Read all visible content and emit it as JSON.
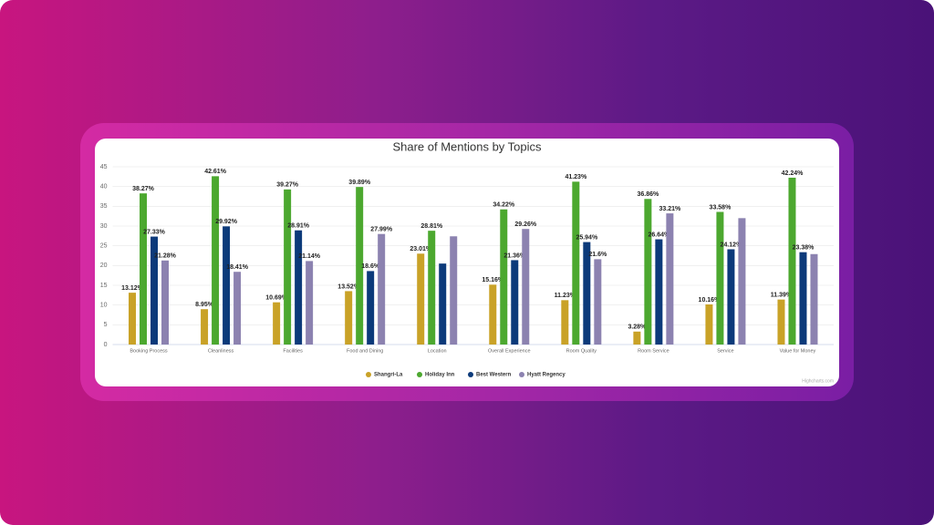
{
  "chart_data": {
    "type": "bar",
    "title": "Share of Mentions by Topics",
    "categories": [
      "Booking Process",
      "Cleanliness",
      "Facilities",
      "Food and Dining",
      "Location",
      "Overall Experience",
      "Room Quality",
      "Room Service",
      "Service",
      "Value for Money"
    ],
    "series": [
      {
        "name": "Shangri-La",
        "color": "#c9a227",
        "values": [
          13.12,
          8.95,
          10.69,
          13.52,
          23.01,
          15.16,
          11.23,
          3.28,
          10.16,
          11.39
        ],
        "value_labels": [
          "13.12%",
          "8.95%",
          "10.69%",
          "13.52%",
          "23.01%",
          "15.16%",
          "11.23%",
          "3.28%",
          "10.16%",
          "11.39%"
        ]
      },
      {
        "name": "Holiday Inn",
        "color": "#4ca82f",
        "values": [
          38.27,
          42.61,
          39.27,
          39.89,
          28.81,
          34.22,
          41.23,
          36.86,
          33.58,
          42.24
        ],
        "value_labels": [
          "38.27%",
          "42.61%",
          "39.27%",
          "39.89%",
          "28.81%",
          "34.22%",
          "41.23%",
          "36.86%",
          "33.58%",
          "42.24%"
        ]
      },
      {
        "name": "Best Western",
        "color": "#0c3a7a",
        "values": [
          27.33,
          29.92,
          28.91,
          18.6,
          20.5,
          21.36,
          25.94,
          26.64,
          24.12,
          23.38
        ],
        "value_labels": [
          "27.33%",
          "29.92%",
          "28.91%",
          "18.6%",
          null,
          "21.36%",
          "25.94%",
          "26.64%",
          "24.12%",
          "23.38%"
        ]
      },
      {
        "name": "Hyatt Regency",
        "color": "#8c82b0",
        "values": [
          21.28,
          18.41,
          21.14,
          27.99,
          27.4,
          29.26,
          21.6,
          33.21,
          32,
          22.9
        ],
        "value_labels": [
          "21.28%",
          "18.41%",
          "21.14%",
          "27.99%",
          null,
          "29.26%",
          "21.6%",
          "33.21%",
          null,
          null
        ]
      }
    ],
    "ylim": [
      0,
      45
    ],
    "yticks": [
      0,
      5,
      10,
      15,
      20,
      25,
      30,
      35,
      40,
      45
    ],
    "grid": true,
    "legend_position": "bottom",
    "credit": "Highcharts.com"
  }
}
